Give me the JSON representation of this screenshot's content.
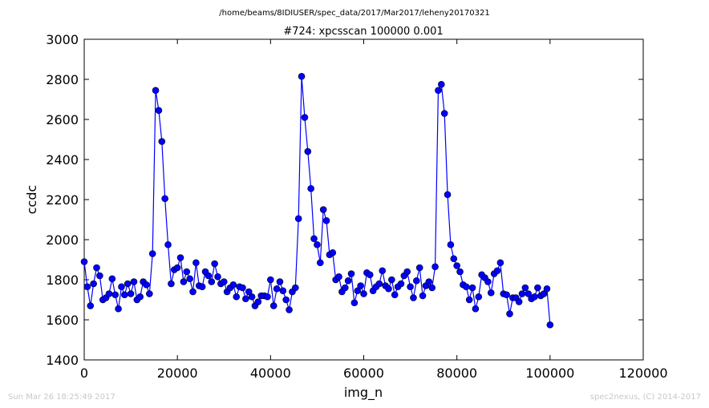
{
  "chart_data": {
    "type": "line",
    "path_title": "/home/beams/8IDIUSER/spec_data/2017/Mar2017/leheny20170321",
    "title": "#724: xpcsscan 100000 0.001",
    "xlabel": "img_n",
    "ylabel": "ccdc",
    "xlim": [
      0,
      120000
    ],
    "ylim": [
      1400,
      3000
    ],
    "xticks": [
      0,
      20000,
      40000,
      60000,
      80000,
      100000,
      120000
    ],
    "yticks": [
      1400,
      1600,
      1800,
      2000,
      2200,
      2400,
      2600,
      2800,
      3000
    ],
    "grid": false,
    "marker": "circle",
    "color": "#0000ff",
    "series": [
      {
        "x": [
          0,
          667,
          1333,
          2000,
          2667,
          3333,
          4000,
          4667,
          5333,
          6000,
          6667,
          7333,
          8000,
          8667,
          9333,
          10000,
          10667,
          11333,
          12000,
          12667,
          13333,
          14000,
          14667,
          15333,
          16000,
          16667,
          17333,
          18000,
          18667,
          19333,
          20000,
          20667,
          21333,
          22000,
          22667,
          23333,
          24000,
          24667,
          25333,
          26000,
          26667,
          27333,
          28000,
          28667,
          29333,
          30000,
          30667,
          31333,
          32000,
          32667,
          33333,
          34000,
          34667,
          35333,
          36000,
          36667,
          37333,
          38000,
          38667,
          39333,
          40000,
          40667,
          41333,
          42000,
          42667,
          43333,
          44000,
          44667,
          45333,
          46000,
          46667,
          47333,
          48000,
          48667,
          49333,
          50000,
          50667,
          51333,
          52000,
          52667,
          53333,
          54000,
          54667,
          55333,
          56000,
          56667,
          57333,
          58000,
          58667,
          59333,
          60000,
          60667,
          61333,
          62000,
          62667,
          63333,
          64000,
          64667,
          65333,
          66000,
          66667,
          67333,
          68000,
          68667,
          69333,
          70000,
          70667,
          71333,
          72000,
          72667,
          73333,
          74000,
          74667,
          75333,
          76000,
          76667,
          77333,
          78000,
          78667,
          79333,
          80000,
          80667,
          81333,
          82000,
          82667,
          83333,
          84000,
          84667,
          85333,
          86000,
          86667,
          87333,
          88000,
          88667,
          89333,
          90000,
          90667,
          91333,
          92000,
          92667,
          93333,
          94000,
          94667,
          95333,
          96000,
          96667,
          97333,
          98000,
          98667,
          99333,
          100000
        ],
        "y": [
          1890,
          1765,
          1670,
          1780,
          1860,
          1820,
          1700,
          1710,
          1730,
          1805,
          1725,
          1655,
          1765,
          1725,
          1780,
          1730,
          1790,
          1700,
          1715,
          1790,
          1775,
          1730,
          1930,
          2745,
          2645,
          2490,
          2205,
          1975,
          1780,
          1850,
          1860,
          1910,
          1790,
          1840,
          1805,
          1740,
          1885,
          1770,
          1765,
          1840,
          1820,
          1790,
          1880,
          1815,
          1780,
          1790,
          1740,
          1760,
          1775,
          1715,
          1765,
          1760,
          1705,
          1740,
          1715,
          1670,
          1690,
          1720,
          1720,
          1715,
          1800,
          1670,
          1755,
          1790,
          1745,
          1700,
          1650,
          1740,
          1760,
          2105,
          2815,
          2610,
          2440,
          2255,
          2005,
          1975,
          1885,
          2150,
          2095,
          1925,
          1935,
          1800,
          1815,
          1740,
          1760,
          1795,
          1830,
          1685,
          1745,
          1770,
          1730,
          1835,
          1825,
          1745,
          1765,
          1780,
          1845,
          1770,
          1755,
          1800,
          1725,
          1765,
          1780,
          1820,
          1840,
          1765,
          1710,
          1795,
          1860,
          1720,
          1770,
          1790,
          1760,
          1865,
          2745,
          2775,
          2630,
          2225,
          1975,
          1905,
          1870,
          1840,
          1775,
          1765,
          1700,
          1760,
          1655,
          1715,
          1825,
          1810,
          1790,
          1735,
          1830,
          1845,
          1885,
          1730,
          1725,
          1630,
          1710,
          1710,
          1690,
          1730,
          1760,
          1730,
          1705,
          1715,
          1760,
          1720,
          1730,
          1755,
          1575
        ]
      }
    ]
  },
  "footer": {
    "timestamp": "Sun Mar 26 18:25:49 2017",
    "credit": "spec2nexus, (C) 2014-2017"
  }
}
